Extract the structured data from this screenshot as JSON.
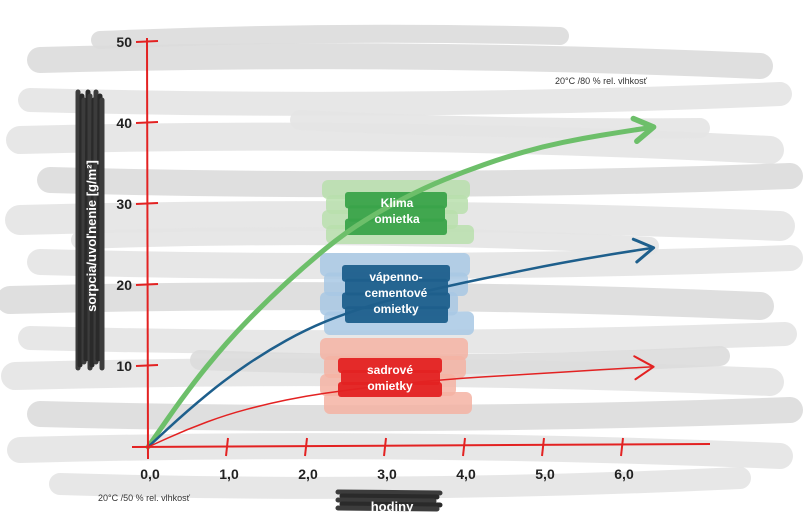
{
  "chart_data": {
    "type": "line",
    "xlabel": "hodiny",
    "ylabel": "sorpcia/uvoľnenie [g/m²]",
    "xlim": [
      0,
      6.5
    ],
    "ylim": [
      0,
      50
    ],
    "x_ticks": [
      "0,0",
      "1,0",
      "2,0",
      "3,0",
      "4,0",
      "5,0",
      "6,0"
    ],
    "y_ticks": [
      "10",
      "20",
      "30",
      "40",
      "50"
    ],
    "annotations": {
      "top_condition": "20°C /80 % rel. vlhkosť",
      "bottom_condition": "20°C /50 % rel. vlhkosť"
    },
    "series": [
      {
        "name": "Klima omietka",
        "label_lines": [
          "Klima",
          "omietka"
        ],
        "color": "#6dbf6a",
        "box_color": "#b9dfad",
        "label_color": "#3aa34a",
        "x": [
          0,
          0.5,
          1.0,
          1.5,
          2.0,
          2.5,
          3.0,
          3.5,
          4.0,
          4.5,
          5.0,
          5.5,
          6.0,
          6.4
        ],
        "y": [
          0,
          7,
          13,
          18,
          22.5,
          26.5,
          29.5,
          32,
          34,
          35.7,
          37.1,
          38.1,
          38.9,
          39.5
        ]
      },
      {
        "name": "vápenno-cementové omietky",
        "label_lines": [
          "vápenno-",
          "cementové",
          "omietky"
        ],
        "color": "#1e5f8c",
        "box_color": "#a8c8e4",
        "label_color": "#1e5f8c",
        "x": [
          0,
          0.5,
          1.0,
          1.5,
          2.0,
          2.5,
          3.0,
          3.5,
          4.0,
          4.5,
          5.0,
          5.5,
          6.0,
          6.4
        ],
        "y": [
          0,
          4.5,
          8.5,
          11.8,
          14.5,
          16.5,
          18,
          19.2,
          20.3,
          21.3,
          22.3,
          23.2,
          24,
          24.6
        ]
      },
      {
        "name": "sadrové omietky",
        "label_lines": [
          "sadrové",
          "omietky"
        ],
        "color": "#e32222",
        "box_color": "#f5b3a3",
        "label_color": "#e32222",
        "x": [
          0,
          0.5,
          1.0,
          1.5,
          2.0,
          2.5,
          3.0,
          3.5,
          4.0,
          4.5,
          5.0,
          5.5,
          6.0,
          6.4
        ],
        "y": [
          0,
          2.2,
          4.0,
          5.3,
          6.3,
          7.0,
          7.6,
          8.1,
          8.5,
          8.8,
          9.1,
          9.4,
          9.7,
          9.9
        ]
      }
    ]
  }
}
